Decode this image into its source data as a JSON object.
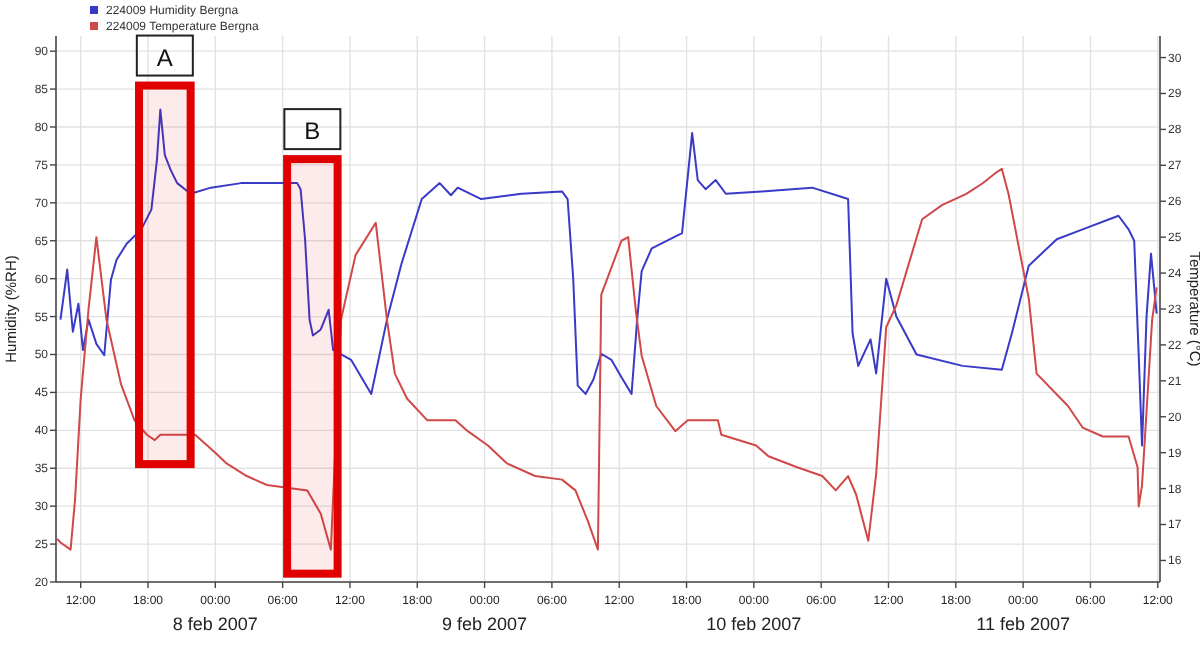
{
  "chart_data": {
    "type": "line",
    "ylabel": "Humidity (%RH)",
    "y2label": "Temperature (°C)",
    "xlim": [
      "2007-02-07T09:48",
      "2007-02-11T12:12"
    ],
    "xticks": [
      {
        "value": "2007-02-07T12:00",
        "label": "12:00"
      },
      {
        "value": "2007-02-07T18:00",
        "label": "18:00"
      },
      {
        "value": "2007-02-08T00:00",
        "label": "00:00"
      },
      {
        "value": "2007-02-08T06:00",
        "label": "06:00"
      },
      {
        "value": "2007-02-08T12:00",
        "label": "12:00"
      },
      {
        "value": "2007-02-08T18:00",
        "label": "18:00"
      },
      {
        "value": "2007-02-09T00:00",
        "label": "00:00"
      },
      {
        "value": "2007-02-09T06:00",
        "label": "06:00"
      },
      {
        "value": "2007-02-09T12:00",
        "label": "12:00"
      },
      {
        "value": "2007-02-09T18:00",
        "label": "18:00"
      },
      {
        "value": "2007-02-10T00:00",
        "label": "00:00"
      },
      {
        "value": "2007-02-10T06:00",
        "label": "06:00"
      },
      {
        "value": "2007-02-10T12:00",
        "label": "12:00"
      },
      {
        "value": "2007-02-10T18:00",
        "label": "18:00"
      },
      {
        "value": "2007-02-11T00:00",
        "label": "00:00"
      },
      {
        "value": "2007-02-11T06:00",
        "label": "06:00"
      },
      {
        "value": "2007-02-11T12:00",
        "label": "12:00"
      }
    ],
    "ylim": [
      20,
      92
    ],
    "yticks": [
      20,
      25,
      30,
      35,
      40,
      45,
      50,
      55,
      60,
      65,
      70,
      75,
      80,
      85,
      90
    ],
    "y2lim": [
      15.4,
      30.6
    ],
    "y2ticks": [
      16,
      17,
      18,
      19,
      20,
      21,
      22,
      23,
      24,
      25,
      26,
      27,
      28,
      29,
      30
    ],
    "grid": true,
    "legend": "top left",
    "marker": "none",
    "line_style": "solid",
    "annotations": [
      "8 feb 2007",
      "9 feb 2007",
      "10 feb 2007",
      "11 feb 2007"
    ],
    "series": [
      {
        "name": "224009 Humidity Bergna",
        "color": "#3a3ac8",
        "x": [
          "2007-02-07T10:12",
          "2007-02-07T10:48",
          "2007-02-07T11:18",
          "2007-02-07T11:48",
          "2007-02-07T12:12",
          "2007-02-07T12:42",
          "2007-02-07T13:24",
          "2007-02-07T14:06",
          "2007-02-07T14:42",
          "2007-02-07T15:12",
          "2007-02-07T16:06",
          "2007-02-07T17:24",
          "2007-02-07T18:18",
          "2007-02-07T18:48",
          "2007-02-07T19:06",
          "2007-02-07T19:30",
          "2007-02-07T20:00",
          "2007-02-07T20:36",
          "2007-02-07T21:48",
          "2007-02-07T23:36",
          "2007-02-08T02:18",
          "2007-02-08T07:18",
          "2007-02-08T07:36",
          "2007-02-08T08:00",
          "2007-02-08T08:24",
          "2007-02-08T08:42",
          "2007-02-08T09:24",
          "2007-02-08T10:06",
          "2007-02-08T10:30",
          "2007-02-08T12:06",
          "2007-02-08T13:54",
          "2007-02-08T15:18",
          "2007-02-08T16:36",
          "2007-02-08T18:24",
          "2007-02-08T20:00",
          "2007-02-08T21:00",
          "2007-02-08T21:36",
          "2007-02-08T23:42",
          "2007-02-09T03:18",
          "2007-02-09T06:54",
          "2007-02-09T07:24",
          "2007-02-09T07:54",
          "2007-02-09T08:18",
          "2007-02-09T09:00",
          "2007-02-09T09:42",
          "2007-02-09T10:24",
          "2007-02-09T11:18",
          "2007-02-09T12:12",
          "2007-02-09T13:06",
          "2007-02-09T13:36",
          "2007-02-09T14:00",
          "2007-02-09T14:54",
          "2007-02-09T17:36",
          "2007-02-09T18:30",
          "2007-02-09T19:00",
          "2007-02-09T19:42",
          "2007-02-09T20:36",
          "2007-02-09T21:30",
          "2007-02-10T00:42",
          "2007-02-10T05:12",
          "2007-02-10T08:24",
          "2007-02-10T08:48",
          "2007-02-10T09:18",
          "2007-02-10T10:24",
          "2007-02-10T10:54",
          "2007-02-10T11:48",
          "2007-02-10T12:42",
          "2007-02-10T14:30",
          "2007-02-10T18:36",
          "2007-02-10T22:06",
          "2007-02-10T23:00",
          "2007-02-11T00:30",
          "2007-02-11T03:00",
          "2007-02-11T05:18",
          "2007-02-11T08:30",
          "2007-02-11T09:24",
          "2007-02-11T09:54",
          "2007-02-11T10:18",
          "2007-02-11T10:36",
          "2007-02-11T11:00",
          "2007-02-11T11:24",
          "2007-02-11T11:54"
        ],
        "values": [
          54.6,
          61.2,
          53,
          56.7,
          50.6,
          54.6,
          51.4,
          49.9,
          59.9,
          62.5,
          64.6,
          66.5,
          69.1,
          75.7,
          82.3,
          76.3,
          74.4,
          72.6,
          71.2,
          72,
          72.6,
          72.6,
          71.8,
          65.2,
          54.6,
          52.5,
          53.3,
          55.9,
          50.6,
          49.3,
          44.8,
          54.6,
          62,
          70.5,
          72.6,
          71,
          72,
          70.5,
          71.2,
          71.5,
          70.5,
          60,
          45.9,
          44.8,
          46.7,
          50.1,
          49.3,
          47,
          44.8,
          54.6,
          61,
          64,
          66,
          79.2,
          73,
          71.8,
          73,
          71.2,
          71.5,
          72,
          70.5,
          52.8,
          48.5,
          52,
          47.5,
          60,
          55,
          50,
          48.5,
          48,
          52.8,
          61.7,
          65.2,
          66.5,
          68.3,
          66.5,
          65,
          50,
          38,
          55,
          63.3,
          55.4
        ]
      },
      {
        "name": "224009 Temperature Bergna",
        "color": "#d04848",
        "axis": "y2",
        "x": [
          "2007-02-07T09:54",
          "2007-02-07T10:12",
          "2007-02-07T11:06",
          "2007-02-07T11:30",
          "2007-02-07T12:00",
          "2007-02-07T12:42",
          "2007-02-07T13:24",
          "2007-02-07T14:18",
          "2007-02-07T15:36",
          "2007-02-07T16:48",
          "2007-02-07T17:54",
          "2007-02-07T18:36",
          "2007-02-07T19:06",
          "2007-02-07T22:12",
          "2007-02-08T00:00",
          "2007-02-08T01:00",
          "2007-02-08T02:48",
          "2007-02-08T04:36",
          "2007-02-08T08:12",
          "2007-02-08T09:24",
          "2007-02-08T10:18",
          "2007-02-08T11:12",
          "2007-02-08T12:30",
          "2007-02-08T14:18",
          "2007-02-08T15:18",
          "2007-02-08T16:00",
          "2007-02-08T17:06",
          "2007-02-08T18:54",
          "2007-02-08T21:24",
          "2007-02-08T22:30",
          "2007-02-09T00:18",
          "2007-02-09T02:00",
          "2007-02-09T04:30",
          "2007-02-09T06:54",
          "2007-02-09T08:06",
          "2007-02-09T09:12",
          "2007-02-09T10:06",
          "2007-02-09T10:24",
          "2007-02-09T12:12",
          "2007-02-09T12:48",
          "2007-02-09T13:30",
          "2007-02-09T14:00",
          "2007-02-09T15:18",
          "2007-02-09T17:00",
          "2007-02-09T18:06",
          "2007-02-09T20:48",
          "2007-02-09T21:06",
          "2007-02-10T00:12",
          "2007-02-10T01:18",
          "2007-02-10T03:48",
          "2007-02-10T06:06",
          "2007-02-10T07:18",
          "2007-02-10T08:24",
          "2007-02-10T09:06",
          "2007-02-10T10:12",
          "2007-02-10T10:54",
          "2007-02-10T11:48",
          "2007-02-10T12:42",
          "2007-02-10T15:00",
          "2007-02-10T16:48",
          "2007-02-10T18:54",
          "2007-02-10T20:24",
          "2007-02-10T21:36",
          "2007-02-10T22:06",
          "2007-02-10T22:42",
          "2007-02-11T00:30",
          "2007-02-11T01:12",
          "2007-02-11T04:00",
          "2007-02-11T05:18",
          "2007-02-11T07:06",
          "2007-02-11T09:24",
          "2007-02-11T10:12",
          "2007-02-11T10:18",
          "2007-02-11T10:36",
          "2007-02-11T11:30",
          "2007-02-11T11:54"
        ],
        "values": [
          16.6,
          16.5,
          16.3,
          17.7,
          20.5,
          23.0,
          25.0,
          22.7,
          20.9,
          19.9,
          19.5,
          19.35,
          19.5,
          19.5,
          19.0,
          18.7,
          18.35,
          18.1,
          17.95,
          17.3,
          16.3,
          22.7,
          24.5,
          25.4,
          22.7,
          21.2,
          20.5,
          19.9,
          19.9,
          19.6,
          19.2,
          18.7,
          18.35,
          18.25,
          17.95,
          17.1,
          16.3,
          23.4,
          24.9,
          25.0,
          22.9,
          21.7,
          20.3,
          19.6,
          19.9,
          19.9,
          19.5,
          19.2,
          18.9,
          18.6,
          18.35,
          17.95,
          18.35,
          17.85,
          16.55,
          18.4,
          22.5,
          23.1,
          25.5,
          25.9,
          26.2,
          26.5,
          26.8,
          26.9,
          26.2,
          23.3,
          21.2,
          20.3,
          19.7,
          19.45,
          19.45,
          18.6,
          17.5,
          18.1,
          22.7,
          23.6
        ]
      }
    ],
    "bands": [
      {
        "axis": "x",
        "from": "2007-02-07T17:12",
        "to": "2007-02-07T21:48",
        "label": "A",
        "color": "#e00000"
      },
      {
        "axis": "x",
        "from": "2007-02-08T06:24",
        "to": "2007-02-08T10:54",
        "label": "B",
        "color": "#e00000"
      }
    ]
  }
}
